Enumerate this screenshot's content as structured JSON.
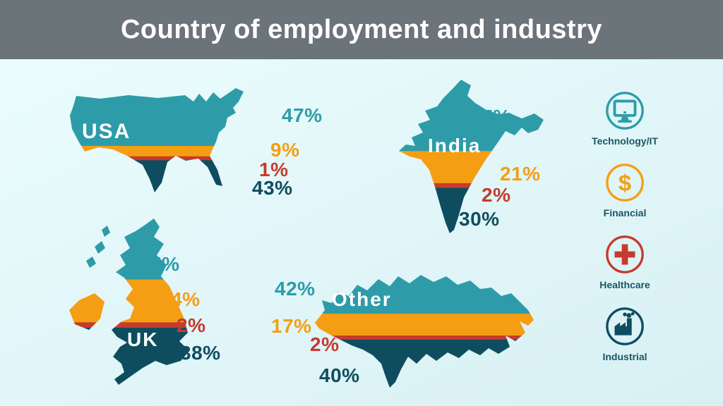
{
  "header": {
    "title": "Country of employment and industry"
  },
  "palette": {
    "teal": "#2D9CA8",
    "orange": "#F59E13",
    "red": "#C63B2C",
    "dark": "#0E4D5F",
    "header_bg": "#6B7478",
    "header_text": "#FFFFFF",
    "legend_text": "#1A5666",
    "background_top": "#ECFDFE",
    "background_bottom": "#D8F0F4"
  },
  "legend": {
    "items": [
      {
        "label": "Technology/IT",
        "icon": "monitor-icon",
        "color_key": "teal"
      },
      {
        "label": "Financial",
        "icon": "dollar-icon",
        "color_key": "orange"
      },
      {
        "label": "Healthcare",
        "icon": "medical-cross-icon",
        "color_key": "red"
      },
      {
        "label": "Industrial",
        "icon": "factory-icon",
        "color_key": "dark"
      }
    ]
  },
  "chart_data": {
    "type": "map-infographic",
    "series": [
      "Technology/IT",
      "Financial",
      "Healthcare",
      "Industrial"
    ],
    "segment_color_keys": [
      "teal",
      "orange",
      "red",
      "dark"
    ],
    "countries": [
      {
        "name": "USA",
        "values": [
          47,
          9,
          1,
          43
        ],
        "labels": [
          "47%",
          "9%",
          "1%",
          "43%"
        ]
      },
      {
        "name": "India",
        "values": [
          47,
          21,
          2,
          30
        ],
        "labels": [
          "47%",
          "21%",
          "2%",
          "30%"
        ]
      },
      {
        "name": "UK",
        "values": [
          35,
          24,
          2,
          38
        ],
        "labels": [
          "35%",
          "24%",
          "2%",
          "38%"
        ]
      },
      {
        "name": "Other",
        "values": [
          42,
          17,
          2,
          40
        ],
        "labels": [
          "42%",
          "17%",
          "2%",
          "40%"
        ]
      }
    ]
  }
}
